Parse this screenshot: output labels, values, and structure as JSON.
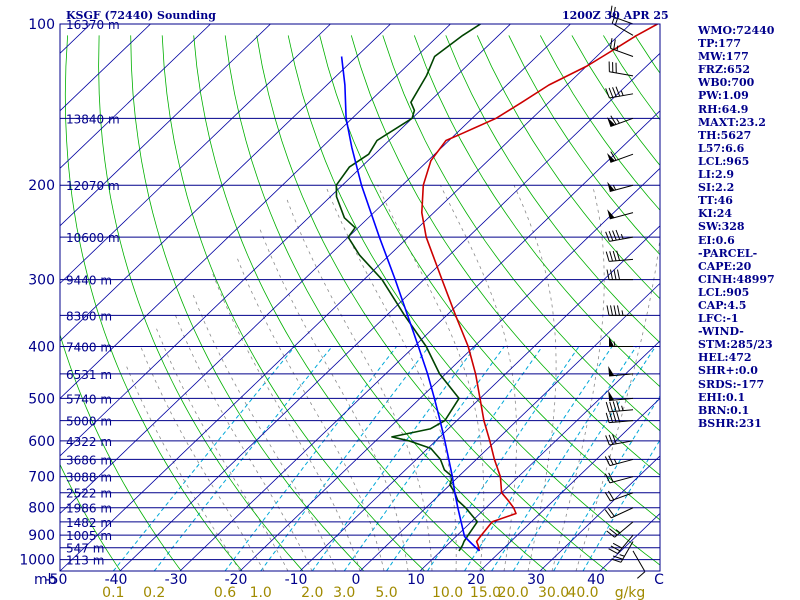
{
  "header": {
    "station": "KSGF (72440) Sounding",
    "valid_time": "1200Z 30 APR 25"
  },
  "indices": [
    "WMO:72440",
    "TP:177",
    "MW:177",
    "FRZ:652",
    "WB0:700",
    "PW:1.09",
    "RH:64.9",
    "MAXT:23.2",
    "TH:5627",
    "L57:6.6",
    "LCL:965",
    "LI:2.9",
    "SI:2.2",
    "TT:46",
    "KI:24",
    "SW:328",
    "EI:0.6",
    "-PARCEL-",
    "CAPE:20",
    "CINH:48997",
    "LCL:905",
    "CAP:4.5",
    "LFC:-1",
    "-WIND-",
    "STM:285/23",
    "HEL:472",
    "SHR+:0.0",
    "SRDS:-177",
    "EHI:0.1",
    "BRN:0.1",
    "BSHR:231"
  ],
  "colors": {
    "background": "#ffffff",
    "isobar": "#00008b",
    "text": "#00008b",
    "isotherm": "#0000a0",
    "dry_adiabat": "#00b000",
    "moist_adiabat": "#8a8a8a",
    "mixing_ratio": "#00a8d8",
    "mixing_ratio_label": "#a08a00",
    "temperature": "#cc0000",
    "dewpoint": "#004400",
    "parcel": "#0000ff",
    "wind_barb": "#000000"
  },
  "chart_data": {
    "type": "line",
    "xlabel": "C",
    "ylabel": "mb",
    "pressure_labels": [
      100,
      200,
      300,
      400,
      500,
      600,
      700,
      800,
      900,
      1000
    ],
    "temperature_ticks": [
      "-50",
      "-40",
      "-30",
      "-20",
      "-10",
      "0",
      "10",
      "20",
      "30",
      "40"
    ],
    "mixing_ratio_ticks": [
      "0.1",
      "0.2",
      "0.6",
      "1.0",
      "2.0",
      "3.0",
      "5.0",
      "10.0",
      "15.0",
      "20.0",
      "30.0",
      "40.0"
    ],
    "mixing_ratio_unit": "g/kg",
    "height_labels": [
      {
        "p": 100,
        "label": "16370 m"
      },
      {
        "p": 150,
        "label": "13840 m"
      },
      {
        "p": 200,
        "label": "12070 m"
      },
      {
        "p": 250,
        "label": "10600 m"
      },
      {
        "p": 300,
        "label": "9440 m"
      },
      {
        "p": 350,
        "label": "8360 m"
      },
      {
        "p": 400,
        "label": "7400 m"
      },
      {
        "p": 450,
        "label": "6531 m"
      },
      {
        "p": 500,
        "label": "5740 m"
      },
      {
        "p": 550,
        "label": "5000 m"
      },
      {
        "p": 600,
        "label": "4322 m"
      },
      {
        "p": 650,
        "label": "3686 m"
      },
      {
        "p": 700,
        "label": "3088 m"
      },
      {
        "p": 750,
        "label": "2522 m"
      },
      {
        "p": 800,
        "label": "1986 m"
      },
      {
        "p": 850,
        "label": "1482 m"
      },
      {
        "p": 900,
        "label": "1005 m"
      },
      {
        "p": 950,
        "label": "547 m"
      },
      {
        "p": 1000,
        "label": "113 m"
      }
    ],
    "series": [
      {
        "key": "temperature",
        "points": [
          [
            963,
            16.4
          ],
          [
            940,
            15.2
          ],
          [
            925,
            14.3
          ],
          [
            900,
            14.0
          ],
          [
            850,
            13.5
          ],
          [
            820,
            16.0
          ],
          [
            800,
            14.6
          ],
          [
            775,
            12.4
          ],
          [
            750,
            10.0
          ],
          [
            700,
            7.0
          ],
          [
            650,
            3.0
          ],
          [
            600,
            -1.0
          ],
          [
            550,
            -5.5
          ],
          [
            500,
            -10.0
          ],
          [
            450,
            -15.0
          ],
          [
            400,
            -21.0
          ],
          [
            350,
            -28.5
          ],
          [
            300,
            -37.0
          ],
          [
            250,
            -47.0
          ],
          [
            225,
            -52.0
          ],
          [
            200,
            -56.5
          ],
          [
            180,
            -59.5
          ],
          [
            165,
            -60.5
          ],
          [
            160,
            -59.0
          ],
          [
            150,
            -56.0
          ],
          [
            140,
            -54.5
          ],
          [
            130,
            -53.0
          ],
          [
            120,
            -50.0
          ],
          [
            115,
            -49.0
          ],
          [
            110,
            -48.0
          ],
          [
            105,
            -47.0
          ],
          [
            100,
            -45.5
          ]
        ]
      },
      {
        "key": "dewpoint",
        "points": [
          [
            963,
            13.0
          ],
          [
            940,
            12.6
          ],
          [
            925,
            12.2
          ],
          [
            900,
            11.8
          ],
          [
            850,
            11.0
          ],
          [
            800,
            6.6
          ],
          [
            775,
            4.0
          ],
          [
            750,
            2.2
          ],
          [
            725,
            0.0
          ],
          [
            700,
            -1.0
          ],
          [
            680,
            -3.5
          ],
          [
            650,
            -6.0
          ],
          [
            620,
            -9.5
          ],
          [
            600,
            -14.5
          ],
          [
            590,
            -18.0
          ],
          [
            570,
            -13.0
          ],
          [
            550,
            -12.0
          ],
          [
            500,
            -13.5
          ],
          [
            450,
            -21.0
          ],
          [
            400,
            -28.0
          ],
          [
            350,
            -37.0
          ],
          [
            300,
            -47.0
          ],
          [
            270,
            -55.0
          ],
          [
            250,
            -60.0
          ],
          [
            240,
            -60.5
          ],
          [
            230,
            -64.0
          ],
          [
            210,
            -69.0
          ],
          [
            200,
            -71.0
          ],
          [
            185,
            -72.0
          ],
          [
            175,
            -71.0
          ],
          [
            165,
            -72.0
          ],
          [
            150,
            -70.0
          ],
          [
            145,
            -71.0
          ],
          [
            140,
            -73.0
          ],
          [
            125,
            -75.0
          ],
          [
            115,
            -77.0
          ],
          [
            105,
            -76.0
          ],
          [
            100,
            -75.0
          ]
        ]
      },
      {
        "key": "parcel",
        "points": [
          [
            963,
            16.4
          ],
          [
            935,
            14.0
          ],
          [
            905,
            11.4
          ],
          [
            850,
            8.3
          ],
          [
            800,
            5.3
          ],
          [
            750,
            2.2
          ],
          [
            700,
            -1.0
          ],
          [
            650,
            -4.6
          ],
          [
            600,
            -8.5
          ],
          [
            550,
            -12.8
          ],
          [
            500,
            -17.6
          ],
          [
            450,
            -23.0
          ],
          [
            400,
            -29.3
          ],
          [
            350,
            -36.5
          ],
          [
            300,
            -44.8
          ],
          [
            250,
            -54.8
          ],
          [
            200,
            -66.8
          ],
          [
            170,
            -75.0
          ],
          [
            150,
            -81.0
          ],
          [
            130,
            -87.0
          ],
          [
            115,
            -92.5
          ]
        ]
      }
    ],
    "wind_barbs": [
      {
        "p": 963,
        "dir": 150,
        "spd": 10
      },
      {
        "p": 925,
        "dir": 210,
        "spd": 25
      },
      {
        "p": 900,
        "dir": 220,
        "spd": 30
      },
      {
        "p": 850,
        "dir": 230,
        "spd": 25
      },
      {
        "p": 800,
        "dir": 245,
        "spd": 20
      },
      {
        "p": 750,
        "dir": 250,
        "spd": 20
      },
      {
        "p": 700,
        "dir": 255,
        "spd": 20
      },
      {
        "p": 650,
        "dir": 255,
        "spd": 25
      },
      {
        "p": 600,
        "dir": 260,
        "spd": 30
      },
      {
        "p": 550,
        "dir": 265,
        "spd": 40
      },
      {
        "p": 525,
        "dir": 265,
        "spd": 45
      },
      {
        "p": 500,
        "dir": 265,
        "spd": 50
      },
      {
        "p": 450,
        "dir": 265,
        "spd": 50
      },
      {
        "p": 400,
        "dir": 270,
        "spd": 55
      },
      {
        "p": 350,
        "dir": 270,
        "spd": 45
      },
      {
        "p": 300,
        "dir": 270,
        "spd": 40
      },
      {
        "p": 275,
        "dir": 265,
        "spd": 40
      },
      {
        "p": 250,
        "dir": 260,
        "spd": 45
      },
      {
        "p": 225,
        "dir": 255,
        "spd": 50
      },
      {
        "p": 200,
        "dir": 255,
        "spd": 55
      },
      {
        "p": 175,
        "dir": 250,
        "spd": 60
      },
      {
        "p": 150,
        "dir": 250,
        "spd": 65
      },
      {
        "p": 135,
        "dir": 260,
        "spd": 45
      },
      {
        "p": 125,
        "dir": 280,
        "spd": 30
      },
      {
        "p": 115,
        "dir": 290,
        "spd": 25
      },
      {
        "p": 105,
        "dir": 300,
        "spd": 20
      },
      {
        "p": 100,
        "dir": 290,
        "spd": 20
      }
    ]
  }
}
